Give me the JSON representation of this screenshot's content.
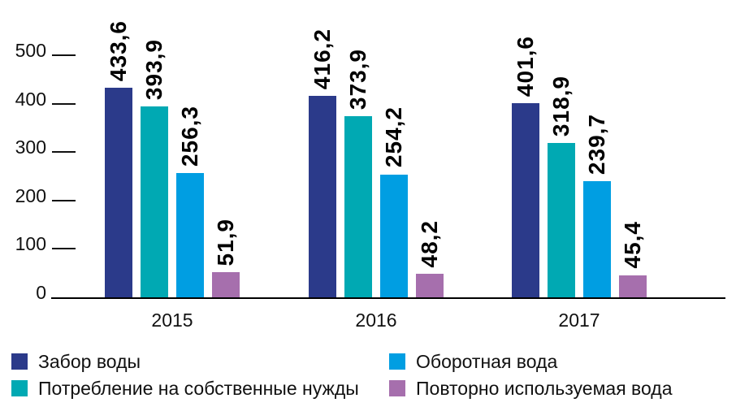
{
  "chart_data": {
    "type": "bar",
    "title": "",
    "xlabel": "",
    "ylabel": "",
    "categories": [
      "2015",
      "2016",
      "2017"
    ],
    "series": [
      {
        "name": "Забор воды",
        "color": "#2b3a8a",
        "values": [
          433.6,
          416.2,
          401.6
        ],
        "labels": [
          "433,6",
          "416,2",
          "401,6"
        ]
      },
      {
        "name": "Потребление на собственные нужды",
        "color": "#00a9b3",
        "values": [
          393.9,
          373.9,
          318.9
        ],
        "labels": [
          "393,9",
          "373,9",
          "318,9"
        ]
      },
      {
        "name": "Оборотная вода",
        "color": "#009ee2",
        "values": [
          256.3,
          254.2,
          239.7
        ],
        "labels": [
          "256,3",
          "254,2",
          "239,7"
        ]
      },
      {
        "name": "Повторно используемая вода",
        "color": "#a66fad",
        "values": [
          51.9,
          48.2,
          45.4
        ],
        "labels": [
          "51,9",
          "48,2",
          "45,4"
        ]
      }
    ],
    "yticks": [
      "0",
      "100",
      "200",
      "300",
      "400",
      "500"
    ],
    "ylim": [
      0,
      500
    ],
    "grid": false,
    "decimal_separator": ",",
    "legend_position": "bottom",
    "legend_columns": [
      [
        0,
        1
      ],
      [
        2,
        3
      ]
    ],
    "axis_color": "#000000",
    "text_color": "#111111"
  }
}
